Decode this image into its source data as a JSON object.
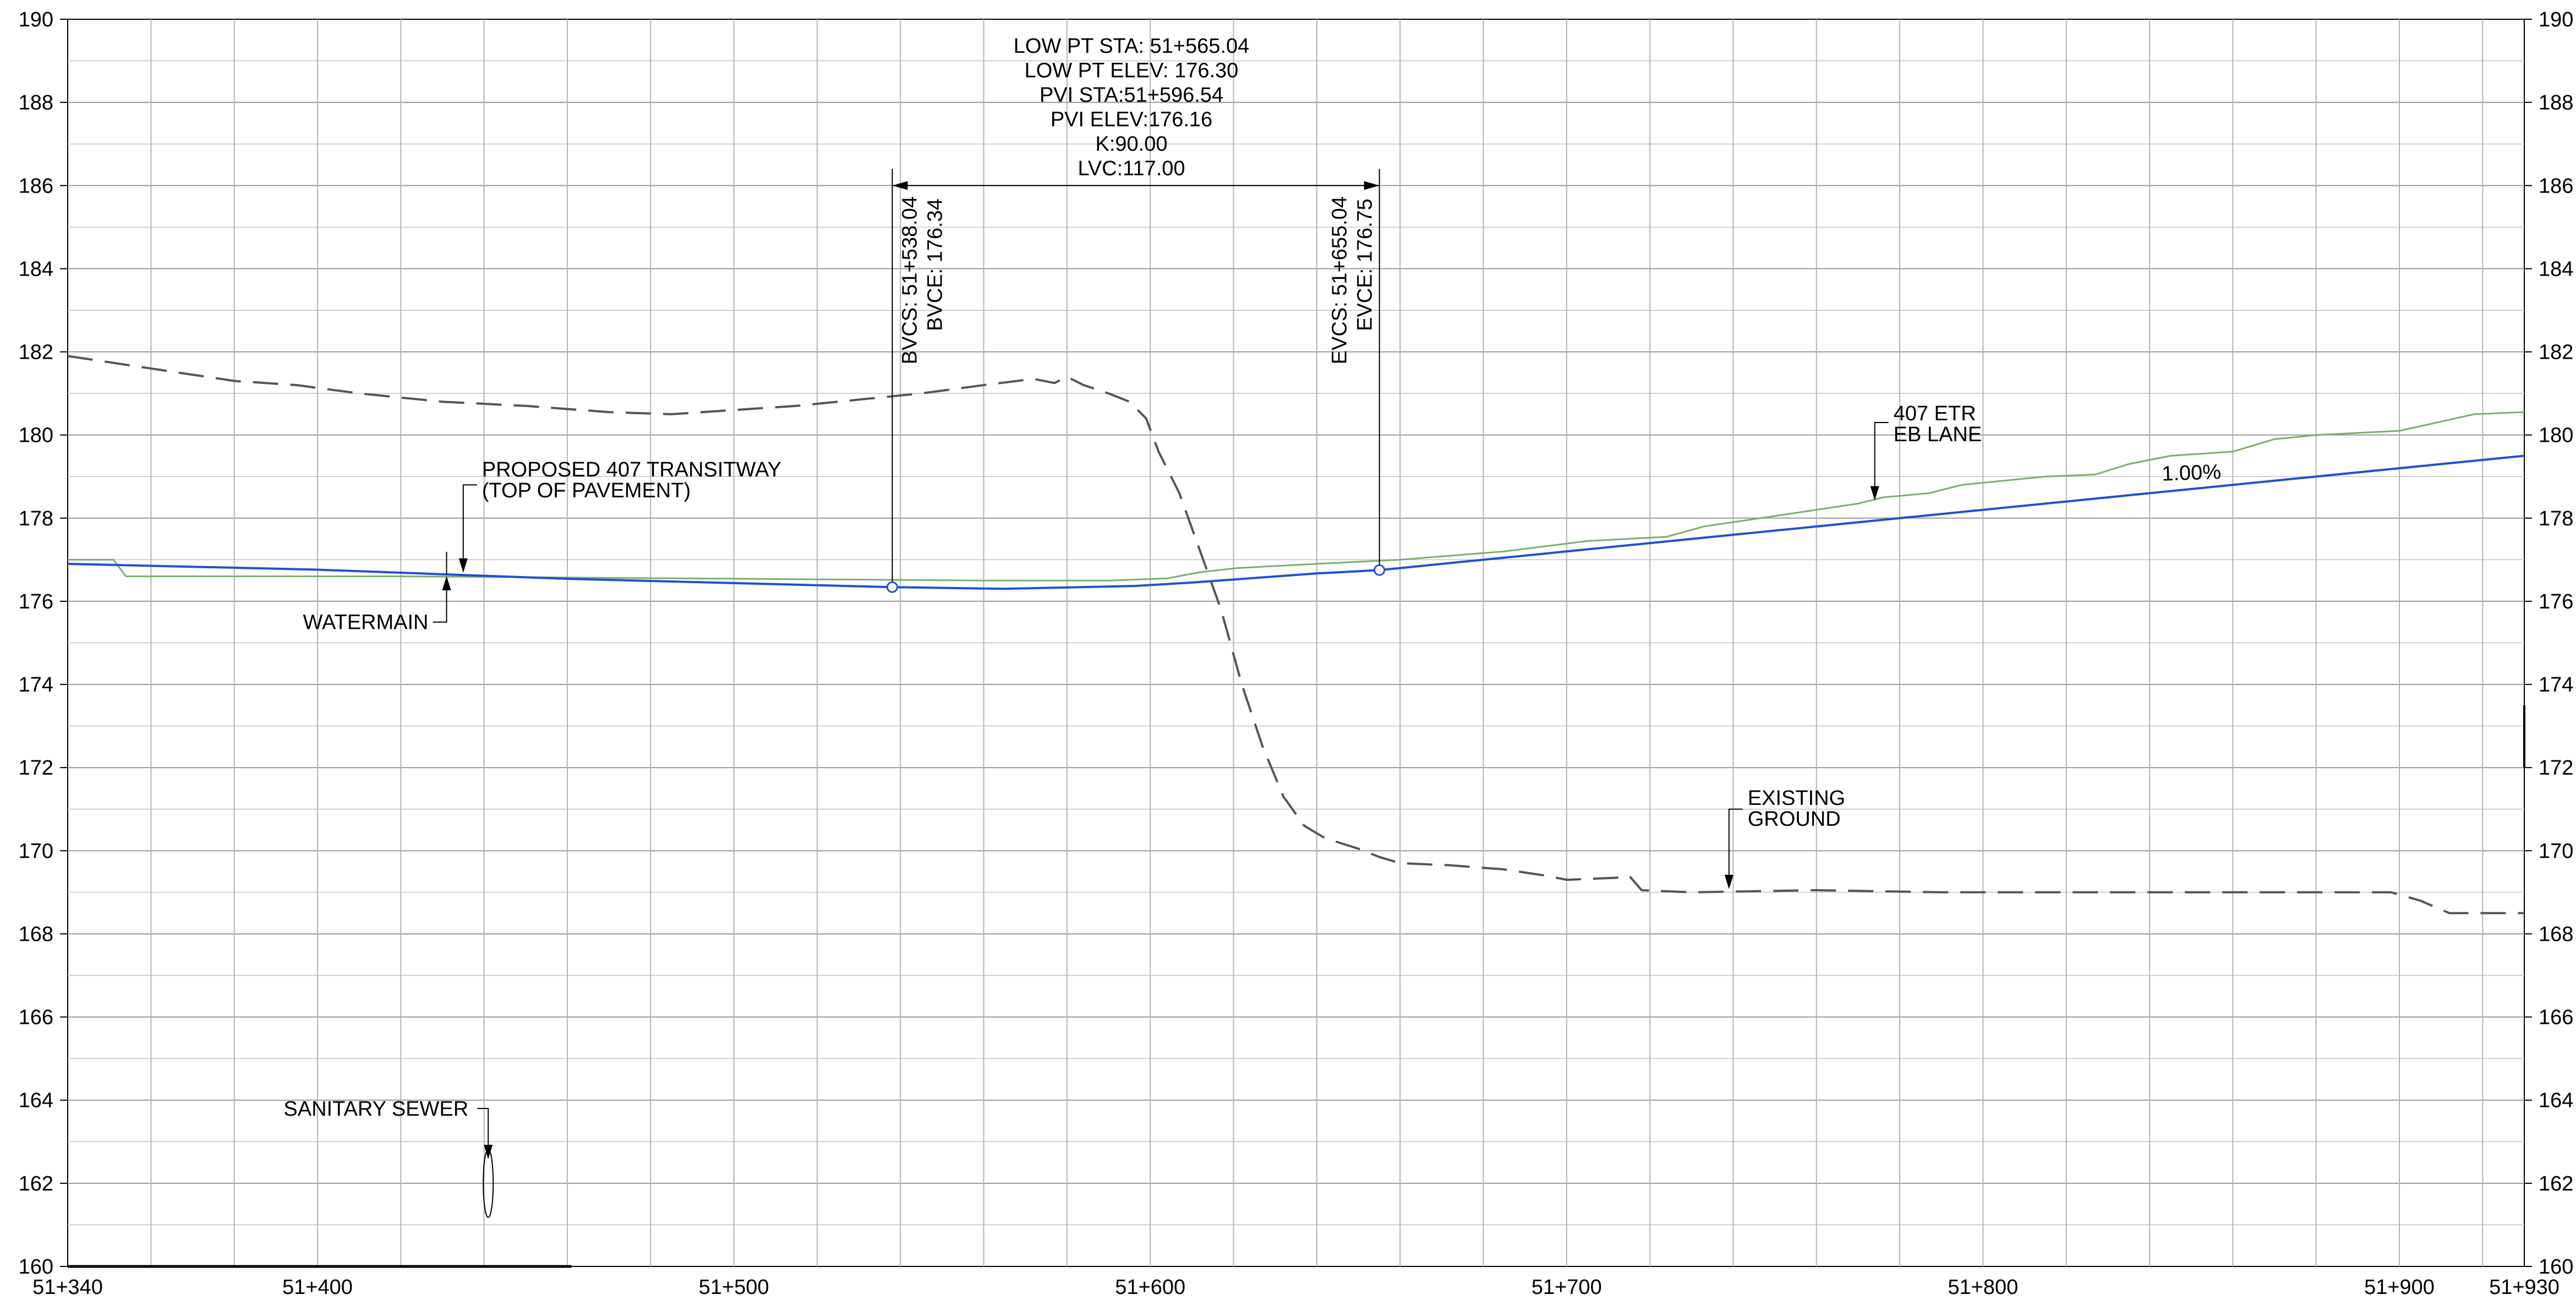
{
  "chart_data": {
    "type": "line",
    "x_axis": {
      "min": 51340,
      "max": 51930,
      "ticks": [
        {
          "value": 51340,
          "label": "51+340"
        },
        {
          "value": 51400,
          "label": "51+400"
        },
        {
          "value": 51500,
          "label": "51+500"
        },
        {
          "value": 51600,
          "label": "51+600"
        },
        {
          "value": 51700,
          "label": "51+700"
        },
        {
          "value": 51800,
          "label": "51+800"
        },
        {
          "value": 51900,
          "label": "51+900"
        },
        {
          "value": 51930,
          "label": "51+930"
        }
      ],
      "minor_grid_step": 20
    },
    "y_axis": {
      "min": 160,
      "max": 190,
      "step": 2,
      "labels_left": true,
      "labels_right": true,
      "minor_grid_step": 1
    },
    "grid": true,
    "series": [
      {
        "key": "existing_ground",
        "color": "#555555",
        "style": "dashed",
        "points": [
          [
            51340,
            181.9
          ],
          [
            51360,
            181.6
          ],
          [
            51380,
            181.3
          ],
          [
            51395,
            181.2
          ],
          [
            51410,
            181.0
          ],
          [
            51430,
            180.8
          ],
          [
            51450,
            180.7
          ],
          [
            51470,
            180.55
          ],
          [
            51485,
            180.5
          ],
          [
            51500,
            180.6
          ],
          [
            51515,
            180.7
          ],
          [
            51530,
            180.85
          ],
          [
            51545,
            181.0
          ],
          [
            51560,
            181.2
          ],
          [
            51572,
            181.35
          ],
          [
            51577,
            181.25
          ],
          [
            51580,
            181.4
          ],
          [
            51584,
            181.2
          ],
          [
            51590,
            181.0
          ],
          [
            51595,
            180.8
          ],
          [
            51599,
            180.4
          ],
          [
            51602,
            179.6
          ],
          [
            51607,
            178.6
          ],
          [
            51612,
            177.2
          ],
          [
            51617,
            175.8
          ],
          [
            51622,
            174.0
          ],
          [
            51627,
            172.5
          ],
          [
            51632,
            171.3
          ],
          [
            51637,
            170.6
          ],
          [
            51642,
            170.3
          ],
          [
            51650,
            170.05
          ],
          [
            51655,
            169.85
          ],
          [
            51660,
            169.7
          ],
          [
            51672,
            169.65
          ],
          [
            51685,
            169.55
          ],
          [
            51695,
            169.4
          ],
          [
            51700,
            169.3
          ],
          [
            51712,
            169.35
          ],
          [
            51715,
            169.4
          ],
          [
            51718,
            169.05
          ],
          [
            51730,
            169.0
          ],
          [
            51760,
            169.05
          ],
          [
            51790,
            169.0
          ],
          [
            51820,
            169.0
          ],
          [
            51860,
            169.0
          ],
          [
            51898,
            169.0
          ],
          [
            51905,
            168.8
          ],
          [
            51912,
            168.5
          ],
          [
            51930,
            168.5
          ]
        ]
      },
      {
        "key": "eb_lane",
        "color": "#7aaf6a",
        "style": "solid",
        "points": [
          [
            51340,
            177.0
          ],
          [
            51351,
            177.0
          ],
          [
            51354,
            176.6
          ],
          [
            51420,
            176.6
          ],
          [
            51560,
            176.5
          ],
          [
            51590,
            176.5
          ],
          [
            51604,
            176.55
          ],
          [
            51612,
            176.7
          ],
          [
            51621,
            176.8
          ],
          [
            51640,
            176.9
          ],
          [
            51660,
            177.0
          ],
          [
            51685,
            177.2
          ],
          [
            51705,
            177.45
          ],
          [
            51724,
            177.55
          ],
          [
            51733,
            177.8
          ],
          [
            51750,
            178.05
          ],
          [
            51770,
            178.35
          ],
          [
            51776,
            178.5
          ],
          [
            51787,
            178.6
          ],
          [
            51795,
            178.8
          ],
          [
            51815,
            179.0
          ],
          [
            51827,
            179.05
          ],
          [
            51835,
            179.3
          ],
          [
            51845,
            179.5
          ],
          [
            51860,
            179.6
          ],
          [
            51870,
            179.9
          ],
          [
            51880,
            180.0
          ],
          [
            51900,
            180.1
          ],
          [
            51918,
            180.5
          ],
          [
            51930,
            180.55
          ]
        ]
      },
      {
        "key": "proposed_profile",
        "color": "#1f4fd6",
        "style": "solid",
        "points": [
          [
            51340,
            176.9
          ],
          [
            51400,
            176.76
          ],
          [
            51460,
            176.54
          ],
          [
            51538.04,
            176.34
          ],
          [
            51565.04,
            176.3
          ],
          [
            51596.54,
            176.37
          ],
          [
            51610,
            176.45
          ],
          [
            51625,
            176.56
          ],
          [
            51640,
            176.67
          ],
          [
            51655.04,
            176.75
          ],
          [
            51700,
            177.2
          ],
          [
            51800,
            178.2
          ],
          [
            51900,
            179.2
          ],
          [
            51930,
            179.5
          ]
        ]
      }
    ],
    "vertical_curve": {
      "bvcs": {
        "station": 51538.04,
        "elevation": 176.34,
        "label_1": "BVCS: 51+538.04",
        "label_2": "BVCE: 176.34"
      },
      "evcs": {
        "station": 51655.04,
        "elevation": 176.75,
        "label_1": "EVCS: 51+655.04",
        "label_2": "EVCE: 176.75"
      },
      "dimension_elevation": 186.0,
      "extension_top": 186.4,
      "notes": [
        "LOW PT STA: 51+565.04",
        "LOW PT ELEV: 176.30",
        "PVI STA:51+596.54",
        "PVI ELEV:176.16",
        "K:90.00",
        "LVC:117.00"
      ]
    },
    "annotations": {
      "transitway": {
        "line_1": "PROPOSED 407 TRANSITWAY",
        "line_2": "(TOP OF PAVEMENT)",
        "station": 51435,
        "elevation": 176.66
      },
      "watermain": {
        "text": "WATERMAIN",
        "station": 51431,
        "elevation": 176.66
      },
      "etr": {
        "line_1": "407 ETR",
        "line_2": "EB LANE",
        "station": 51774,
        "elevation": 178.4
      },
      "grade": {
        "text": "1.00%",
        "station": 51843,
        "elevation": 178.9
      },
      "existing_ground": {
        "line_1": "EXISTING",
        "line_2": "GROUND",
        "station": 51739,
        "elevation": 169.05
      },
      "sanitary_sewer": {
        "text": "SANITARY SEWER",
        "station": 51441,
        "elevation": 162.0
      }
    }
  }
}
